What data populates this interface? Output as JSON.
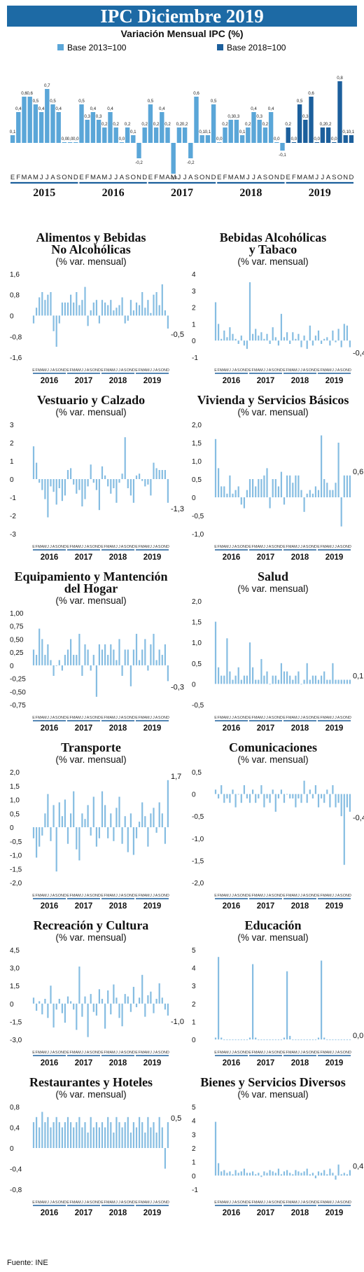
{
  "header": {
    "title": "IPC Diciembre 2019",
    "subtitle": "Variación Mensual IPC (%)"
  },
  "source": "Fuente: INE",
  "colors": {
    "base2013": "#5aa6d8",
    "base2018": "#1c5f9c",
    "panel": "#86bde2",
    "title_bg": "#1d6aa5",
    "axis_rule": "#1c5f9c"
  },
  "chart_data": [
    {
      "id": "ipc",
      "type": "bar",
      "title": "Variación Mensual IPC (%)",
      "legend": [
        "Base 2013=100",
        "Base 2018=100"
      ],
      "legend_position": "top-left",
      "month_letters": [
        "E",
        "F",
        "M",
        "A",
        "M",
        "J",
        "J",
        "A",
        "S",
        "O",
        "N",
        "D"
      ],
      "years": [
        "2015",
        "2016",
        "2017",
        "2018",
        "2019"
      ],
      "series": [
        {
          "name": "Base 2013=100",
          "values": [
            0.1,
            0.4,
            0.6,
            0.6,
            0.5,
            0.4,
            0.7,
            0.5,
            0.4,
            0.0,
            0.0,
            0.0,
            0.5,
            0.3,
            0.4,
            0.3,
            0.2,
            0.4,
            0.2,
            0.0,
            0.2,
            0.1,
            -0.2,
            0.2,
            0.5,
            0.2,
            0.4,
            0.2,
            -0.4,
            0.2,
            0.2,
            -0.2,
            0.6,
            0.1,
            0.1,
            0.5,
            0.0,
            0.2,
            0.3,
            0.3,
            0.1,
            0.2,
            0.4,
            0.3,
            0.2,
            0.4,
            0.0,
            -0.1
          ]
        },
        {
          "name": "Base 2018=100",
          "values": [
            0.2,
            0.0,
            0.5,
            0.3,
            0.6,
            0.0,
            0.2,
            0.2,
            0.0,
            0.8,
            0.1,
            0.1
          ]
        }
      ],
      "value_labels": [
        "0,1",
        "0,4",
        "0,6",
        "0,6",
        "0,5",
        "0,4",
        "0,7",
        "0,5",
        "0,4",
        "0,0",
        "0,0",
        "0,0",
        "0,5",
        "0,3",
        "0,4",
        "0,3",
        "0,2",
        "0,4",
        "0,2",
        "0,0",
        "0,2",
        "0,1",
        "-0,2",
        "0,2",
        "0,5",
        "0,2",
        "0,4",
        "0,2",
        "-0,4",
        "0,2",
        "0,2",
        "-0,2",
        "0,6",
        "0,1",
        "0,1",
        "0,5",
        "0,0",
        "0,2",
        "0,3",
        "0,3",
        "0,1",
        "0,2",
        "0,4",
        "0,3",
        "0,2",
        "0,4",
        "0,0",
        "-0,1",
        "0,2",
        "0,0",
        "0,5",
        "0,3",
        "0,6",
        "0,0",
        "0,2",
        "0,2",
        "0,0",
        "0,8",
        "0,1",
        "0,1"
      ],
      "ylim": [
        -0.5,
        0.9
      ]
    },
    {
      "id": "alimentos",
      "type": "bar",
      "title_lines": [
        "Alimentos y Bebidas",
        "No  Alcohólicas"
      ],
      "ylabel": "(% var. mensual)",
      "yticks": [
        "1,6",
        "0,8",
        "0",
        "-0,8",
        "-1,6"
      ],
      "ytick_values": [
        1.6,
        0.8,
        0,
        -0.8,
        -1.6
      ],
      "ylim": [
        -1.6,
        1.6
      ],
      "month_letters": "EFMAMJJASOND",
      "years": [
        "2016",
        "2017",
        "2018",
        "2019"
      ],
      "values": [
        -0.3,
        0.3,
        0.7,
        0.9,
        0.6,
        0.8,
        0.9,
        -0.6,
        -1.2,
        -0.3,
        0.5,
        0.5,
        0.5,
        0.8,
        0.5,
        0.9,
        0.4,
        0.6,
        1.1,
        -0.4,
        0.2,
        0.5,
        0.6,
        -0.3,
        0.6,
        0.5,
        0.4,
        0.6,
        0.2,
        0.3,
        0.4,
        0.7,
        -0.3,
        -0.2,
        0.6,
        0.2,
        0.5,
        0.4,
        0.9,
        0.3,
        0.6,
        0.1,
        0.8,
        0.9,
        0.4,
        1.2,
        0.2,
        -0.5
      ],
      "last_label": "-0,5"
    },
    {
      "id": "bebidas",
      "type": "bar",
      "title_lines": [
        "Bebidas Alcohólicas",
        "y Tabaco"
      ],
      "ylabel": "(% var. mensual)",
      "yticks": [
        "4",
        "3",
        "2",
        "1",
        "0",
        "-1"
      ],
      "ytick_values": [
        4,
        3,
        2,
        1,
        0,
        -1
      ],
      "ylim": [
        -1,
        4
      ],
      "month_letters": "EFMAMJJASOND",
      "years": [
        "2016",
        "2017",
        "2018",
        "2019"
      ],
      "values": [
        2.3,
        1.0,
        0.1,
        0.6,
        0.2,
        0.8,
        0.4,
        0.1,
        -0.2,
        0.3,
        -0.3,
        -0.5,
        3.5,
        0.4,
        0.7,
        0.3,
        0.5,
        0.1,
        0.4,
        -0.2,
        0.8,
        0.2,
        -0.3,
        1.6,
        0.2,
        0.5,
        -0.2,
        0.5,
        0.1,
        0.4,
        -0.4,
        0.3,
        -0.5,
        0.9,
        -0.3,
        0.3,
        0.6,
        -0.2,
        0.1,
        0.2,
        -0.3,
        0.6,
        -0.1,
        0.7,
        -0.4,
        1.0,
        0.9,
        -0.4
      ],
      "last_label": "-0,4"
    },
    {
      "id": "vestuario",
      "type": "bar",
      "title_lines": [
        "Vestuario y Calzado"
      ],
      "ylabel": "(% var. mensual)",
      "yticks": [
        "3",
        "2",
        "1",
        "0",
        "-1",
        "-2",
        "-3"
      ],
      "ytick_values": [
        3,
        2,
        1,
        0,
        -1,
        -2,
        -3
      ],
      "ylim": [
        -3,
        3
      ],
      "month_letters": "EFMAMJJASOND",
      "years": [
        "2016",
        "2017",
        "2018",
        "2019"
      ],
      "values": [
        1.8,
        0.9,
        -0.2,
        -0.6,
        -1.1,
        -2.1,
        -0.4,
        -0.7,
        -1.4,
        -0.5,
        -1.2,
        -0.9,
        0.5,
        0.6,
        -0.3,
        -0.8,
        -0.6,
        -1.5,
        -1.1,
        -0.4,
        0.8,
        -0.2,
        -0.6,
        -1.7,
        0.7,
        0.2,
        -0.4,
        -0.8,
        -0.5,
        -1.3,
        -0.2,
        0.3,
        2.3,
        -0.5,
        -0.9,
        -1.3,
        0.2,
        0.3,
        -0.1,
        -0.4,
        -0.3,
        -0.9,
        0.9,
        0.6,
        0.5,
        0.5,
        0.5,
        -1.3
      ],
      "last_label": "-1,3"
    },
    {
      "id": "vivienda",
      "type": "bar",
      "title_lines": [
        "Vivienda y Servicios Básicos"
      ],
      "ylabel": "(% var. mensual)",
      "yticks": [
        "2,0",
        "1,5",
        "1,0",
        "0,5",
        "0",
        "-0,5",
        "-1,0"
      ],
      "ytick_values": [
        2,
        1.5,
        1,
        0.5,
        0,
        -0.5,
        -1
      ],
      "ylim": [
        -1,
        2
      ],
      "month_letters": "EFMAMJJASOND",
      "years": [
        "2016",
        "2017",
        "2018",
        "2019"
      ],
      "values": [
        1.6,
        0.8,
        0.3,
        0.3,
        0.1,
        0.6,
        0.1,
        0.2,
        0.3,
        -0.2,
        -0.3,
        0.2,
        0.5,
        0.5,
        0.3,
        0.5,
        0.5,
        0.6,
        0.8,
        -0.3,
        0.5,
        0.5,
        0.3,
        0.7,
        -0.2,
        0.6,
        0.6,
        0.4,
        0.6,
        0.6,
        0.2,
        -0.4,
        0.1,
        0.2,
        0.1,
        0.3,
        0.2,
        1.7,
        0.5,
        0.4,
        0.2,
        0.2,
        0.4,
        1.5,
        -0.8,
        0.6,
        0.6,
        0.6
      ],
      "last_label": "0,6"
    },
    {
      "id": "equipamiento",
      "type": "bar",
      "title_lines": [
        "Equipamiento y Mantención",
        "del Hogar"
      ],
      "ylabel": "(% var. mensual)",
      "yticks": [
        "1,00",
        "0,75",
        "0,50",
        "0,25",
        "0",
        "-0,25",
        "-0,50",
        "-0,75"
      ],
      "ytick_values": [
        1,
        0.75,
        0.5,
        0.25,
        0,
        -0.25,
        -0.5,
        -0.75
      ],
      "ylim": [
        -0.75,
        1
      ],
      "month_letters": "EFMAMJJASOND",
      "years": [
        "2016",
        "2017",
        "2018",
        "2019"
      ],
      "values": [
        0.3,
        0.2,
        0.7,
        0.5,
        0.2,
        0.4,
        0.1,
        -0.2,
        0.0,
        0.1,
        -0.1,
        0.2,
        0.3,
        0.5,
        0.2,
        0.2,
        0.6,
        -0.2,
        0.4,
        0.3,
        -0.1,
        0.2,
        -0.6,
        0.4,
        0.3,
        0.4,
        0.2,
        0.4,
        0.3,
        0.1,
        0.5,
        -0.2,
        0.3,
        0.3,
        -0.4,
        0.3,
        0.6,
        0.1,
        0.3,
        0.5,
        -0.1,
        0.4,
        0.6,
        0.1,
        0.3,
        0.2,
        0.4,
        -0.3
      ],
      "last_label": "-0,3"
    },
    {
      "id": "salud",
      "type": "bar",
      "title_lines": [
        "Salud"
      ],
      "ylabel": "(% var. mensual)",
      "yticks": [
        "2,0",
        "1,5",
        "1,0",
        "0,5",
        "0",
        "-0,5"
      ],
      "ytick_values": [
        2,
        1.5,
        1,
        0.5,
        0,
        -0.5
      ],
      "ylim": [
        -0.5,
        2
      ],
      "month_letters": "EFMAMJJASOND",
      "years": [
        "2016",
        "2017",
        "2018",
        "2019"
      ],
      "values": [
        1.5,
        0.4,
        0.2,
        0.2,
        1.1,
        0.3,
        0.1,
        0.2,
        0.4,
        0.1,
        0.2,
        0.2,
        1.0,
        0.4,
        0.1,
        0.1,
        0.6,
        0.2,
        0.3,
        0.0,
        0.2,
        0.2,
        0.1,
        0.5,
        0.3,
        0.3,
        0.2,
        0.1,
        0.2,
        0.3,
        0.0,
        0.1,
        0.5,
        0.1,
        0.2,
        0.2,
        0.1,
        0.2,
        0.3,
        0.1,
        0.1,
        0.5,
        0.1,
        0.1,
        0.1,
        0.1,
        0.1,
        0.1
      ],
      "last_label": "0,1"
    },
    {
      "id": "transporte",
      "type": "bar",
      "title_lines": [
        "Transporte"
      ],
      "ylabel": "(% var. mensual)",
      "yticks": [
        "2,0",
        "1,5",
        "1,0",
        "0,5",
        "0",
        "-0,5",
        "-1,0",
        "-1,5",
        "-2,0"
      ],
      "ytick_values": [
        2,
        1.5,
        1,
        0.5,
        0,
        -0.5,
        -1,
        -1.5,
        -2
      ],
      "ylim": [
        -2,
        2
      ],
      "month_letters": "EFMAMJJASOND",
      "years": [
        "2016",
        "2017",
        "2018",
        "2019"
      ],
      "values": [
        -0.4,
        -1.1,
        -0.7,
        -0.3,
        0.5,
        1.2,
        -0.5,
        0.8,
        -1.6,
        0.9,
        0.4,
        1.0,
        -0.6,
        0.5,
        1.3,
        -0.8,
        -1.2,
        0.5,
        0.3,
        0.8,
        -0.3,
        1.1,
        -0.7,
        -0.4,
        1.3,
        0.8,
        -0.4,
        0.5,
        -0.5,
        0.7,
        1.1,
        -0.6,
        0.4,
        -0.9,
        0.5,
        -1.0,
        -0.4,
        0.2,
        0.9,
        0.4,
        -0.7,
        0.5,
        0.7,
        -0.2,
        0.9,
        0.5,
        -0.6,
        1.7
      ],
      "last_label": "1,7"
    },
    {
      "id": "comunicaciones",
      "type": "bar",
      "title_lines": [
        "Comunicaciones"
      ],
      "ylabel": "(% var. mensual)",
      "yticks": [
        "0,5",
        "0",
        "-0,5",
        "-1,0",
        "-1,5",
        "-2,0"
      ],
      "ytick_values": [
        0.5,
        0,
        -0.5,
        -1,
        -1.5,
        -2
      ],
      "ylim": [
        -2,
        0.5
      ],
      "month_letters": "EFMAMJJASOND",
      "years": [
        "2016",
        "2017",
        "2018",
        "2019"
      ],
      "values": [
        0.1,
        -0.1,
        0.2,
        -0.2,
        -0.1,
        -0.2,
        0.1,
        -0.3,
        0.0,
        -0.2,
        0.2,
        -0.1,
        -0.2,
        0.1,
        -0.2,
        -0.1,
        0.2,
        -0.3,
        -0.1,
        -0.2,
        0.1,
        -0.4,
        -0.1,
        0.1,
        -0.2,
        0.0,
        -0.1,
        -0.1,
        -0.3,
        -0.1,
        -0.2,
        0.3,
        -0.2,
        0.1,
        -0.1,
        0.2,
        -0.3,
        -0.1,
        -0.2,
        0.1,
        -0.3,
        0.2,
        -0.3,
        -0.2,
        -0.5,
        -1.6,
        -0.3,
        -0.4
      ],
      "last_label": "-0,4"
    },
    {
      "id": "recreacion",
      "type": "bar",
      "title_lines": [
        "Recreación y Cultura"
      ],
      "ylabel": "(% var. mensual)",
      "yticks": [
        "4,5",
        "3,0",
        "1,5",
        "0",
        "-1,5",
        "-3,0"
      ],
      "ytick_values": [
        4.5,
        3,
        1.5,
        0,
        -1.5,
        -3
      ],
      "ylim": [
        -3,
        4.5
      ],
      "month_letters": "EFMAMJJASOND",
      "years": [
        "2016",
        "2017",
        "2018",
        "2019"
      ],
      "values": [
        0.5,
        -0.6,
        0.2,
        -0.9,
        0.4,
        -1.2,
        1.5,
        -2.0,
        -0.5,
        0.4,
        -0.8,
        -1.6,
        0.6,
        0.2,
        -0.5,
        -2.2,
        3.1,
        -1.1,
        0.6,
        -2.8,
        0.8,
        -0.7,
        -1.0,
        1.2,
        0.4,
        -2.1,
        1.1,
        -0.9,
        1.6,
        0.5,
        -1.2,
        -1.9,
        0.8,
        0.6,
        -0.7,
        1.4,
        -0.3,
        0.5,
        2.4,
        -1.1,
        0.7,
        1.0,
        -0.8,
        0.4,
        1.7,
        0.5,
        -0.5,
        -1.0
      ],
      "last_label": "-1,0"
    },
    {
      "id": "educacion",
      "type": "bar",
      "title_lines": [
        "Educación"
      ],
      "ylabel": "(% var. mensual)",
      "yticks": [
        "5",
        "4",
        "3",
        "2",
        "1",
        "0"
      ],
      "ytick_values": [
        5,
        4,
        3,
        2,
        1,
        0
      ],
      "ylim": [
        0,
        5
      ],
      "month_letters": "EFMAMJJASOND",
      "years": [
        "2016",
        "2017",
        "2018",
        "2019"
      ],
      "values": [
        0.1,
        4.6,
        0.1,
        0.0,
        0.0,
        0.0,
        0.0,
        0.0,
        0.0,
        0.0,
        0.0,
        0.0,
        0.1,
        4.2,
        0.1,
        0.0,
        0.0,
        0.0,
        0.0,
        0.0,
        0.0,
        0.0,
        0.0,
        0.0,
        0.1,
        3.8,
        0.2,
        0.0,
        0.0,
        0.0,
        0.0,
        0.0,
        0.0,
        0.0,
        0.0,
        0.0,
        0.1,
        4.4,
        0.1,
        0.0,
        0.0,
        0.0,
        0.0,
        0.0,
        0.0,
        0.0,
        0.0,
        0.0
      ],
      "last_label": "0,0"
    },
    {
      "id": "restaurantes",
      "type": "bar",
      "title_lines": [
        "Restaurantes y Hoteles"
      ],
      "ylabel": "(% var. mensual)",
      "yticks": [
        "0,8",
        "0,4",
        "0",
        "-0,4",
        "-0,8"
      ],
      "ytick_values": [
        0.8,
        0.4,
        0,
        -0.4,
        -0.8
      ],
      "ylim": [
        -0.8,
        0.8
      ],
      "month_letters": "EFMAMJJASOND",
      "years": [
        "2016",
        "2017",
        "2018",
        "2019"
      ],
      "values": [
        0.5,
        0.6,
        0.4,
        0.7,
        0.5,
        0.6,
        0.4,
        0.5,
        0.6,
        0.5,
        0.4,
        0.5,
        0.6,
        0.5,
        0.4,
        0.5,
        0.6,
        0.4,
        0.5,
        0.3,
        0.6,
        0.4,
        0.5,
        0.4,
        0.5,
        0.4,
        0.6,
        0.5,
        0.3,
        0.6,
        0.5,
        0.4,
        0.5,
        0.6,
        0.3,
        0.5,
        0.4,
        0.6,
        0.5,
        0.3,
        0.6,
        0.4,
        0.5,
        0.3,
        0.6,
        0.4,
        -0.4,
        0.5
      ],
      "last_label": "0,5"
    },
    {
      "id": "bienes",
      "type": "bar",
      "title_lines": [
        "Bienes y Servicios Diversos"
      ],
      "ylabel": "(% var. mensual)",
      "yticks": [
        "5",
        "4",
        "3",
        "2",
        "1",
        "0",
        "-1"
      ],
      "ytick_values": [
        5,
        4,
        3,
        2,
        1,
        0,
        -1
      ],
      "ylim": [
        -1,
        5
      ],
      "month_letters": "EFMAMJJASOND",
      "years": [
        "2016",
        "2017",
        "2018",
        "2019"
      ],
      "values": [
        3.9,
        0.9,
        0.3,
        0.4,
        0.2,
        0.3,
        0.1,
        0.4,
        0.2,
        0.3,
        0.5,
        0.2,
        0.2,
        0.3,
        0.1,
        0.2,
        -0.1,
        0.3,
        0.2,
        0.4,
        0.3,
        0.2,
        0.5,
        0.1,
        0.3,
        0.4,
        0.2,
        0.1,
        0.4,
        0.3,
        0.2,
        0.3,
        0.5,
        0.1,
        0.2,
        -0.2,
        0.3,
        0.2,
        0.4,
        0.1,
        0.5,
        0.2,
        -0.3,
        0.8,
        0.1,
        0.2,
        0.1,
        0.4
      ],
      "last_label": "0,4"
    }
  ]
}
